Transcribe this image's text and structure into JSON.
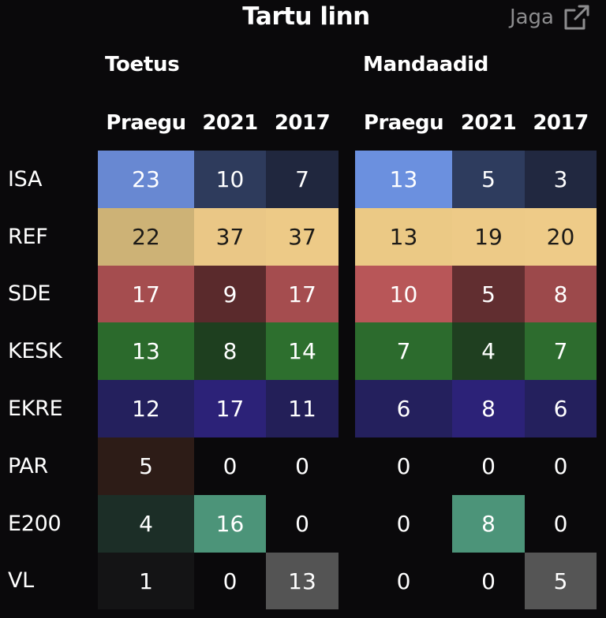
{
  "header": {
    "title": "Tartu linn",
    "share_label": "Jaga",
    "share_icon": "external-link-icon"
  },
  "chart_data": {
    "type": "table",
    "title": "Tartu linn",
    "groups": [
      {
        "name": "Toetus",
        "columns": [
          "Praegu",
          "2021",
          "2017"
        ]
      },
      {
        "name": "Mandaadid",
        "columns": [
          "Praegu",
          "2021",
          "2017"
        ]
      }
    ],
    "rows": [
      {
        "party": "ISA",
        "toetus": [
          23,
          10,
          7
        ],
        "mandaadid": [
          13,
          5,
          3
        ],
        "toetus_colors": [
          "#6888d2",
          "#2e3b5c",
          "#20273e"
        ],
        "mandaadid_colors": [
          "#6b90df",
          "#2e3c5e",
          "#212840"
        ]
      },
      {
        "party": "REF",
        "toetus": [
          22,
          37,
          37
        ],
        "mandaadid": [
          13,
          19,
          20
        ],
        "toetus_colors": [
          "#cdb276",
          "#eac786",
          "#edca87"
        ],
        "mandaadid_colors": [
          "#ebc985",
          "#edca87",
          "#eecb88"
        ]
      },
      {
        "party": "SDE",
        "toetus": [
          17,
          9,
          17
        ],
        "mandaadid": [
          10,
          5,
          8
        ],
        "toetus_colors": [
          "#a54d4f",
          "#5a2a2c",
          "#a54d4f"
        ],
        "mandaadid_colors": [
          "#b85658",
          "#612e30",
          "#9c494b"
        ]
      },
      {
        "party": "KESK",
        "toetus": [
          13,
          8,
          14
        ],
        "mandaadid": [
          7,
          4,
          7
        ],
        "toetus_colors": [
          "#2b6a2c",
          "#1e3f1f",
          "#2d6f2e"
        ],
        "mandaadid_colors": [
          "#2c6b2d",
          "#1f3f20",
          "#2d6c2e"
        ]
      },
      {
        "party": "EKRE",
        "toetus": [
          12,
          17,
          11
        ],
        "mandaadid": [
          6,
          8,
          6
        ],
        "toetus_colors": [
          "#24205d",
          "#2c2278",
          "#231f58"
        ],
        "mandaadid_colors": [
          "#24205d",
          "#2c2278",
          "#24205d"
        ]
      },
      {
        "party": "PAR",
        "toetus": [
          5,
          0,
          0
        ],
        "mandaadid": [
          0,
          0,
          0
        ],
        "toetus_colors": [
          "#2d1c17",
          "",
          ""
        ],
        "mandaadid_colors": [
          "",
          "",
          ""
        ]
      },
      {
        "party": "E200",
        "toetus": [
          4,
          16,
          0
        ],
        "mandaadid": [
          0,
          8,
          0
        ],
        "toetus_colors": [
          "#1c2e27",
          "#4c9479",
          ""
        ],
        "mandaadid_colors": [
          "",
          "#4c9479",
          ""
        ]
      },
      {
        "party": "VL",
        "toetus": [
          1,
          0,
          13
        ],
        "mandaadid": [
          0,
          0,
          5
        ],
        "toetus_colors": [
          "#141415",
          "",
          "#545454"
        ],
        "mandaadid_colors": [
          "",
          "",
          "#555555"
        ]
      }
    ]
  }
}
